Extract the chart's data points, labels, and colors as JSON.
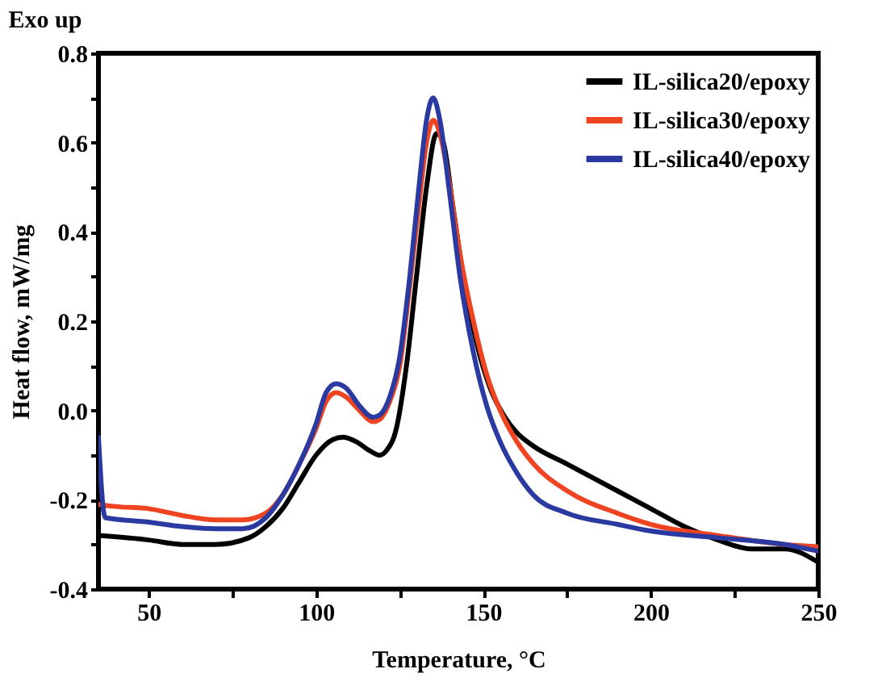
{
  "chart_data": {
    "type": "line",
    "xlabel": "Temperature, °C",
    "ylabel": "Heat flow, mW/mg",
    "annotations": [
      "Exo up"
    ],
    "xlim": [
      35,
      250
    ],
    "ylim": [
      -0.4,
      0.8
    ],
    "xticks": [
      50,
      {
        "value": 75,
        "label": null
      },
      100,
      {
        "value": 125,
        "label": null
      },
      150,
      {
        "value": 175,
        "label": null
      },
      200,
      {
        "value": 225,
        "label": null
      },
      250
    ],
    "yticks": [
      -0.4,
      {
        "value": -0.3,
        "label": null
      },
      {
        "value": -0.2,
        "label": "-0.2"
      },
      {
        "value": -0.1,
        "label": null
      },
      {
        "value": 0,
        "label": "0.0"
      },
      {
        "value": 0.1,
        "label": null
      },
      0.2,
      {
        "value": 0.3,
        "label": null
      },
      0.4,
      {
        "value": 0.5,
        "label": null
      },
      0.6,
      {
        "value": 0.7,
        "label": null
      },
      0.8
    ],
    "grid": false,
    "legend": "top right",
    "marker": "none",
    "line_style": "solid",
    "series": [
      {
        "name": "IL-silica20/epoxy",
        "color": "#000000",
        "x": [
          35,
          50,
          60,
          70,
          80,
          85,
          90,
          95,
          100,
          105,
          108,
          112,
          116,
          119,
          121,
          124,
          127,
          130,
          133,
          136,
          138,
          141,
          144,
          148,
          152,
          156,
          160,
          165,
          175,
          190,
          200,
          210,
          220,
          230,
          240,
          250
        ],
        "values": [
          -0.28,
          -0.29,
          -0.3,
          -0.3,
          -0.285,
          -0.26,
          -0.22,
          -0.16,
          -0.1,
          -0.065,
          -0.06,
          -0.07,
          -0.09,
          -0.1,
          -0.09,
          -0.04,
          0.1,
          0.3,
          0.5,
          0.62,
          0.6,
          0.45,
          0.3,
          0.15,
          0.05,
          -0.01,
          -0.05,
          -0.08,
          -0.12,
          -0.18,
          -0.22,
          -0.26,
          -0.29,
          -0.31,
          -0.31,
          -0.34
        ]
      },
      {
        "name": "IL-silica30/epoxy",
        "color": "#ee4422",
        "x": [
          35,
          40,
          50,
          60,
          70,
          78,
          85,
          90,
          95,
          100,
          103,
          106,
          109,
          113,
          117,
          119,
          122,
          125,
          128,
          131,
          133,
          135,
          137,
          140,
          143,
          147,
          151,
          155,
          160,
          165,
          175,
          190,
          200,
          220,
          240,
          250
        ],
        "values": [
          -0.21,
          -0.215,
          -0.22,
          -0.235,
          -0.245,
          -0.245,
          -0.23,
          -0.19,
          -0.12,
          -0.04,
          0.02,
          0.04,
          0.03,
          0.0,
          -0.025,
          -0.02,
          0.02,
          0.1,
          0.28,
          0.48,
          0.6,
          0.65,
          0.62,
          0.5,
          0.35,
          0.2,
          0.08,
          0.0,
          -0.07,
          -0.12,
          -0.18,
          -0.23,
          -0.255,
          -0.28,
          -0.3,
          -0.305
        ]
      },
      {
        "name": "IL-silica40/epoxy",
        "color": "#2a3aa0",
        "x": [
          35,
          37,
          50,
          60,
          70,
          78,
          85,
          90,
          95,
          100,
          103,
          106,
          109,
          113,
          117,
          119,
          122,
          125,
          128,
          131,
          133,
          135,
          137,
          140,
          143,
          147,
          151,
          155,
          160,
          165,
          175,
          190,
          200,
          220,
          240,
          250
        ],
        "values": [
          -0.06,
          -0.24,
          -0.25,
          -0.26,
          -0.265,
          -0.265,
          -0.24,
          -0.19,
          -0.12,
          -0.03,
          0.04,
          0.06,
          0.05,
          0.01,
          -0.015,
          -0.01,
          0.03,
          0.12,
          0.3,
          0.52,
          0.65,
          0.7,
          0.65,
          0.48,
          0.3,
          0.13,
          0.01,
          -0.07,
          -0.14,
          -0.19,
          -0.23,
          -0.255,
          -0.27,
          -0.285,
          -0.3,
          -0.315
        ]
      }
    ]
  }
}
